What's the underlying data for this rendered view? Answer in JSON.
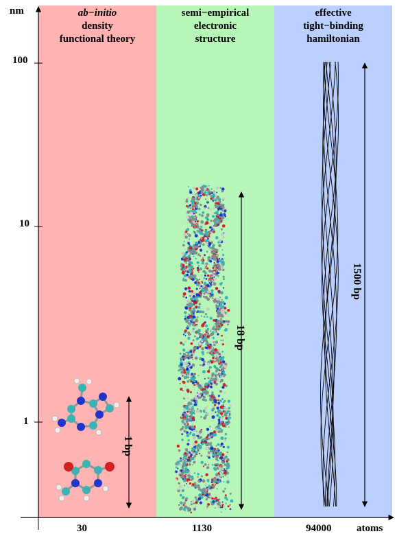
{
  "axis": {
    "y_unit": "nm",
    "x_unit": "atoms",
    "y_ticks": [
      "100",
      "10",
      "1"
    ],
    "x_ticks": [
      "30",
      "1130",
      "94000"
    ]
  },
  "panels": [
    {
      "title_italic": "ab−initio",
      "title_lines": [
        "density",
        "functional theory"
      ],
      "color": "#ffb3b3",
      "bp_label": "1 bp"
    },
    {
      "title_lines": [
        "semi−empirical",
        "electronic",
        "structure"
      ],
      "color": "#b8f5b8",
      "bp_label": "18 bp"
    },
    {
      "title_lines": [
        "effective",
        "tight−binding",
        "hamiltonian"
      ],
      "color": "#bcd0ff",
      "bp_label": "1500 bp"
    }
  ]
}
